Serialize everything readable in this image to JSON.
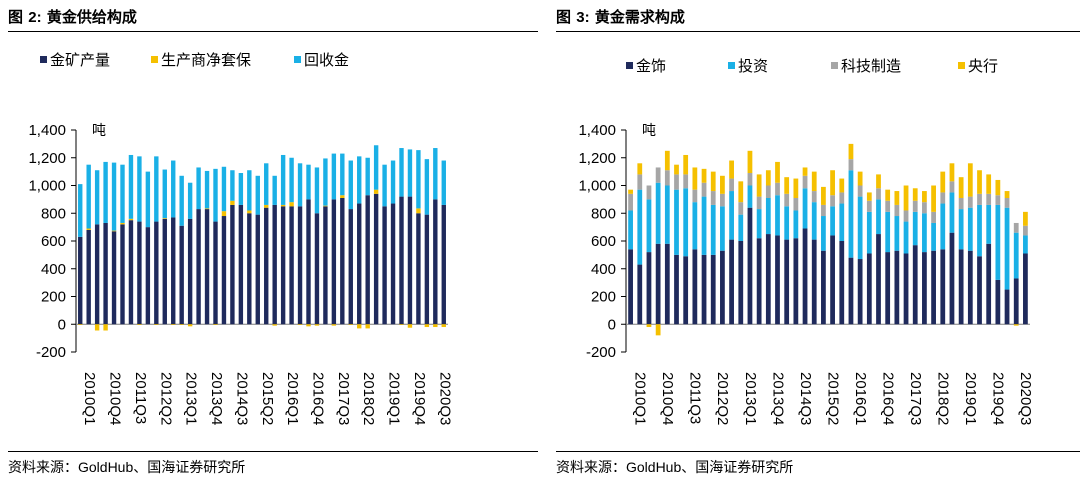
{
  "panels": [
    {
      "title_prefix": "图",
      "title_number": "2:",
      "title_text": "黄金供给构成",
      "source_prefix": "资料来源：",
      "source_latin": "GoldHub",
      "source_suffix": "、国海证券研究所"
    },
    {
      "title_prefix": "图",
      "title_number": "3:",
      "title_text": "黄金需求构成",
      "source_prefix": "资料来源：",
      "source_latin": "GoldHub",
      "source_suffix": "、国海证券研究所"
    }
  ],
  "colors": {
    "navy": "#1f2a5c",
    "yellow": "#f5c000",
    "skyblue": "#1ab0e6",
    "gray": "#a6a6a6"
  },
  "chart_data": [
    {
      "type": "bar",
      "stacked": true,
      "title": "黄金供给构成",
      "ylabel": "吨",
      "ylim": [
        -200,
        1400
      ],
      "yticks": [
        -200,
        0,
        200,
        400,
        600,
        800,
        1000,
        1200,
        1400
      ],
      "ytick_labels": [
        "-200",
        "0",
        "200",
        "400",
        "600",
        "800",
        "1,000",
        "1,200",
        "1,400"
      ],
      "xtick_labels": [
        "2010Q1",
        "2010Q4",
        "2011Q3",
        "2012Q2",
        "2013Q1",
        "2013Q4",
        "2014Q3",
        "2015Q2",
        "2016Q1",
        "2016Q4",
        "2017Q3",
        "2018Q2",
        "2019Q1",
        "2019Q4",
        "2020Q3"
      ],
      "categories": [
        "2010Q1",
        "2010Q2",
        "2010Q3",
        "2010Q4",
        "2011Q1",
        "2011Q2",
        "2011Q3",
        "2011Q4",
        "2012Q1",
        "2012Q2",
        "2012Q3",
        "2012Q4",
        "2013Q1",
        "2013Q2",
        "2013Q3",
        "2013Q4",
        "2014Q1",
        "2014Q2",
        "2014Q3",
        "2014Q4",
        "2015Q1",
        "2015Q2",
        "2015Q3",
        "2015Q4",
        "2016Q1",
        "2016Q2",
        "2016Q3",
        "2016Q4",
        "2017Q1",
        "2017Q2",
        "2017Q3",
        "2017Q4",
        "2018Q1",
        "2018Q2",
        "2018Q3",
        "2018Q4",
        "2019Q1",
        "2019Q2",
        "2019Q3",
        "2019Q4",
        "2020Q1",
        "2020Q2",
        "2020Q3",
        "2020Q4"
      ],
      "legend_position": "top",
      "series": [
        {
          "name": "金矿产量",
          "color_key": "navy",
          "values": [
            630,
            680,
            720,
            730,
            670,
            720,
            750,
            740,
            700,
            740,
            760,
            770,
            710,
            760,
            830,
            830,
            740,
            780,
            860,
            860,
            800,
            790,
            840,
            860,
            850,
            850,
            850,
            900,
            800,
            850,
            900,
            910,
            830,
            870,
            930,
            940,
            850,
            870,
            920,
            920,
            800,
            790,
            900,
            860
          ]
        },
        {
          "name": "生产商净套保",
          "color_key": "yellow",
          "values": [
            -5,
            10,
            -45,
            -45,
            5,
            10,
            10,
            -5,
            0,
            -5,
            5,
            -5,
            -5,
            -15,
            0,
            5,
            -5,
            35,
            30,
            0,
            20,
            0,
            20,
            -10,
            10,
            30,
            -5,
            -15,
            -10,
            5,
            -10,
            20,
            -5,
            -30,
            -30,
            30,
            0,
            0,
            -5,
            -25,
            35,
            -20,
            -20,
            -20
          ]
        },
        {
          "name": "回收金",
          "color_key": "skyblue",
          "values": [
            380,
            460,
            390,
            440,
            490,
            420,
            460,
            470,
            400,
            470,
            350,
            410,
            360,
            260,
            300,
            270,
            380,
            320,
            220,
            230,
            290,
            280,
            300,
            210,
            360,
            320,
            310,
            250,
            330,
            340,
            330,
            300,
            350,
            340,
            270,
            320,
            300,
            310,
            350,
            340,
            420,
            400,
            370,
            320
          ]
        }
      ]
    },
    {
      "type": "bar",
      "stacked": true,
      "title": "黄金需求构成",
      "ylabel": "吨",
      "ylim": [
        -200,
        1400
      ],
      "yticks": [
        -200,
        0,
        200,
        400,
        600,
        800,
        1000,
        1200,
        1400
      ],
      "ytick_labels": [
        "-200",
        "0",
        "200",
        "400",
        "600",
        "800",
        "1,000",
        "1,200",
        "1,400"
      ],
      "xtick_labels": [
        "2010Q1",
        "2010Q4",
        "2011Q3",
        "2012Q2",
        "2013Q1",
        "2013Q4",
        "2014Q3",
        "2015Q2",
        "2016Q1",
        "2016Q4",
        "2017Q3",
        "2018Q2",
        "2019Q1",
        "2019Q4",
        "2020Q3"
      ],
      "categories": [
        "2010Q1",
        "2010Q2",
        "2010Q3",
        "2010Q4",
        "2011Q1",
        "2011Q2",
        "2011Q3",
        "2011Q4",
        "2012Q1",
        "2012Q2",
        "2012Q3",
        "2012Q4",
        "2013Q1",
        "2013Q2",
        "2013Q3",
        "2013Q4",
        "2014Q1",
        "2014Q2",
        "2014Q3",
        "2014Q4",
        "2015Q1",
        "2015Q2",
        "2015Q3",
        "2015Q4",
        "2016Q1",
        "2016Q2",
        "2016Q3",
        "2016Q4",
        "2017Q1",
        "2017Q2",
        "2017Q3",
        "2017Q4",
        "2018Q1",
        "2018Q2",
        "2018Q3",
        "2018Q4",
        "2019Q1",
        "2019Q2",
        "2019Q3",
        "2019Q4",
        "2020Q1",
        "2020Q2",
        "2020Q3",
        "2020Q4"
      ],
      "legend_position": "top",
      "series": [
        {
          "name": "金饰",
          "color_key": "navy",
          "values": [
            540,
            430,
            520,
            580,
            580,
            500,
            490,
            540,
            500,
            500,
            530,
            610,
            600,
            840,
            620,
            650,
            640,
            610,
            620,
            690,
            610,
            530,
            640,
            600,
            480,
            470,
            510,
            650,
            520,
            530,
            510,
            570,
            520,
            530,
            540,
            660,
            540,
            530,
            490,
            580,
            320,
            250,
            330,
            510
          ]
        },
        {
          "name": "投资",
          "color_key": "skyblue",
          "values": [
            280,
            540,
            380,
            440,
            420,
            470,
            490,
            340,
            420,
            360,
            320,
            350,
            190,
            160,
            210,
            260,
            290,
            240,
            200,
            290,
            270,
            250,
            210,
            270,
            630,
            450,
            300,
            250,
            290,
            250,
            230,
            240,
            280,
            200,
            330,
            290,
            290,
            310,
            370,
            280,
            540,
            590,
            330,
            130
          ]
        },
        {
          "name": "科技制造",
          "color_key": "gray",
          "values": [
            120,
            110,
            100,
            110,
            110,
            110,
            100,
            90,
            100,
            100,
            90,
            90,
            90,
            90,
            90,
            90,
            90,
            90,
            90,
            90,
            80,
            80,
            80,
            80,
            80,
            80,
            80,
            80,
            80,
            80,
            80,
            80,
            80,
            80,
            80,
            80,
            80,
            80,
            80,
            80,
            70,
            70,
            70,
            70
          ]
        },
        {
          "name": "央行",
          "color_key": "yellow",
          "values": [
            30,
            80,
            -20,
            -80,
            140,
            70,
            140,
            160,
            100,
            140,
            130,
            130,
            150,
            160,
            160,
            110,
            150,
            120,
            140,
            60,
            140,
            130,
            180,
            100,
            110,
            100,
            60,
            100,
            80,
            100,
            180,
            90,
            80,
            190,
            150,
            130,
            150,
            240,
            170,
            140,
            110,
            50,
            -10,
            100
          ]
        }
      ]
    }
  ]
}
